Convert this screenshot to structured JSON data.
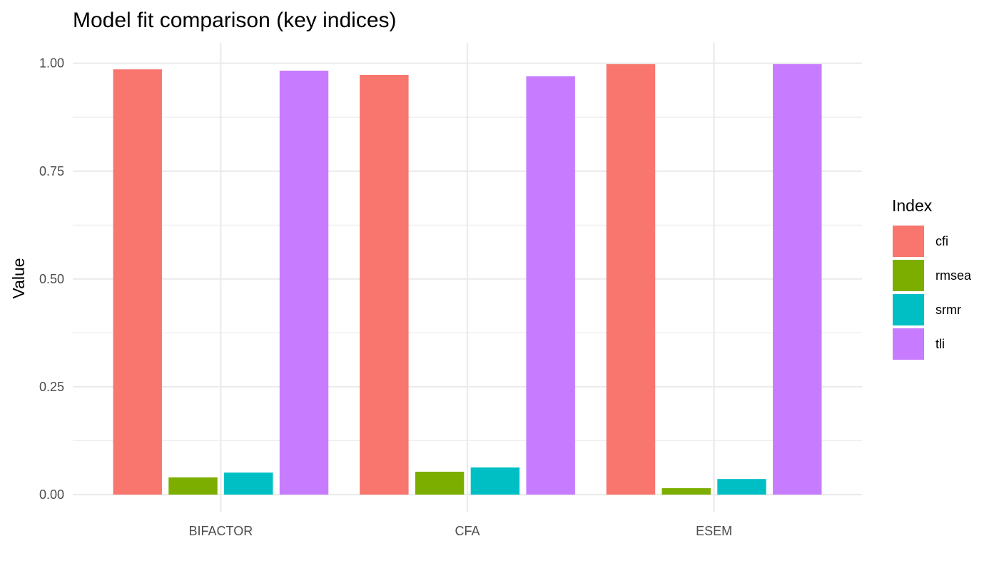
{
  "chart_data": {
    "type": "bar",
    "title": "Model fit comparison (key indices)",
    "xlabel": "",
    "ylabel": "Value",
    "ylim": [
      -0.0415,
      1.0475
    ],
    "y_ticks": [
      "0.00",
      "0.25",
      "0.50",
      "0.75",
      "1.00"
    ],
    "y_tick_values": [
      0,
      0.25,
      0.5,
      0.75,
      1.0
    ],
    "categories": [
      "BIFACTOR",
      "CFA",
      "ESEM"
    ],
    "grid": true,
    "legend": {
      "title": "Index",
      "position": "right"
    },
    "series": [
      {
        "name": "cfi",
        "color": "#F8766D",
        "values": [
          0.986,
          0.973,
          0.998
        ]
      },
      {
        "name": "rmsea",
        "color": "#7CAE00",
        "values": [
          0.04,
          0.053,
          0.015
        ]
      },
      {
        "name": "srmr",
        "color": "#00BFC4",
        "values": [
          0.051,
          0.063,
          0.036
        ]
      },
      {
        "name": "tli",
        "color": "#C77CFF",
        "values": [
          0.983,
          0.97,
          0.998
        ]
      }
    ]
  }
}
